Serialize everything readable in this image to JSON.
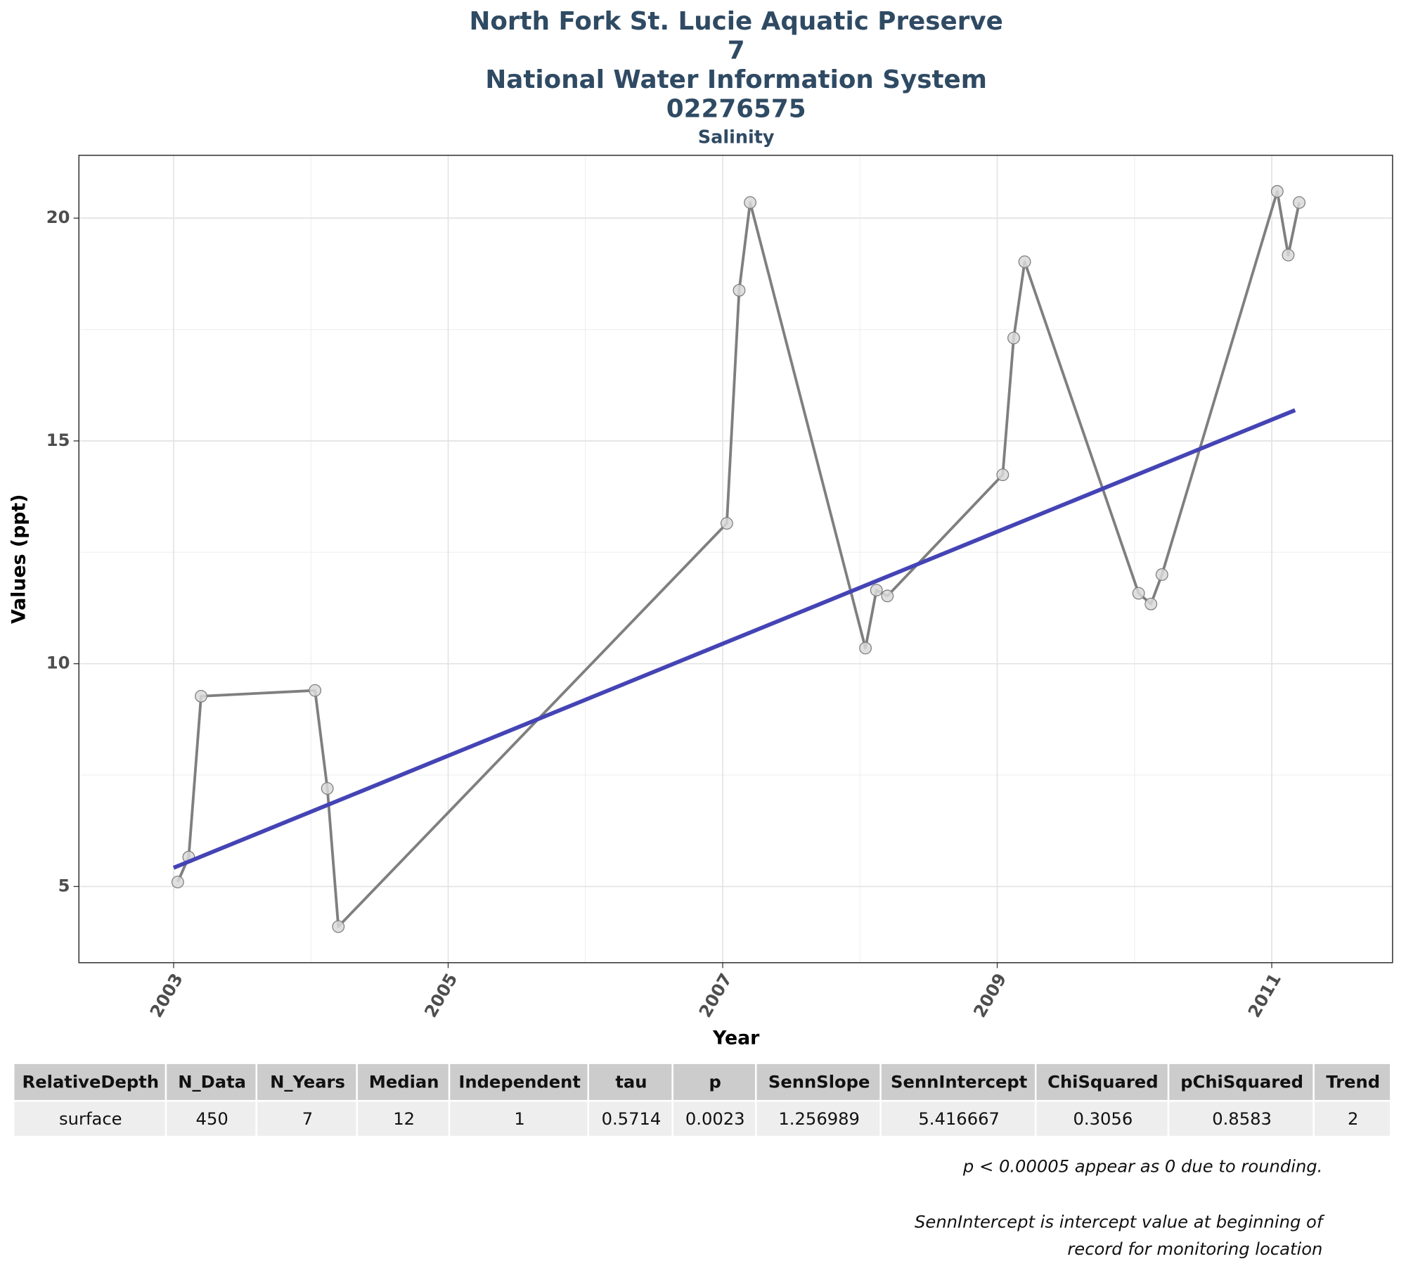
{
  "chart_data": {
    "type": "line",
    "title": [
      "North Fork St. Lucie Aquatic Preserve",
      "7",
      "National Water Information System",
      "02276575"
    ],
    "subtitle": "Salinity",
    "x_label": "Year",
    "y_label": "Values (ppt)",
    "xlim": [
      2002.31,
      2011.88
    ],
    "ylim": [
      3.29,
      21.41
    ],
    "xticks": [
      2003,
      2005,
      2007,
      2009,
      2011
    ],
    "yticks": [
      5,
      10,
      15,
      20
    ],
    "grid": true,
    "series": [
      {
        "color": "#7f7f7f",
        "marker_color": "#d9d9d9",
        "x": [
          2003.03,
          2003.11,
          2003.2,
          2004.03,
          2004.12,
          2004.2,
          2007.03,
          2007.12,
          2007.2,
          2008.04,
          2008.12,
          2008.2,
          2009.04,
          2009.12,
          2009.2,
          2010.03,
          2010.12,
          2010.2,
          2011.04,
          2011.12,
          2011.2
        ],
        "values": [
          5.1,
          5.66,
          9.27,
          9.4,
          7.2,
          4.1,
          13.15,
          18.38,
          20.35,
          10.35,
          11.65,
          11.52,
          14.24,
          17.31,
          19.02,
          11.58,
          11.34,
          12.0,
          20.6,
          19.17,
          20.35
        ]
      }
    ],
    "trend": {
      "color": "#4444b5",
      "x": [
        2003,
        2011.17
      ],
      "values": [
        5.42,
        15.69
      ]
    }
  },
  "table": {
    "columns": [
      "RelativeDepth",
      "N_Data",
      "N_Years",
      "Median",
      "Independent",
      "tau",
      "p",
      "SennSlope",
      "SennIntercept",
      "ChiSquared",
      "pChiSquared",
      "Trend"
    ],
    "rows": [
      [
        "surface",
        "450",
        "7",
        "12",
        "1",
        "0.5714",
        "0.0023",
        "1.256989",
        "5.416667",
        "0.3056",
        "0.8583",
        "2"
      ]
    ]
  },
  "notes": [
    [
      "p < 0.00005 appear as 0 due to rounding."
    ],
    [
      "SennIntercept is intercept value at beginning of",
      "record for monitoring location"
    ]
  ]
}
